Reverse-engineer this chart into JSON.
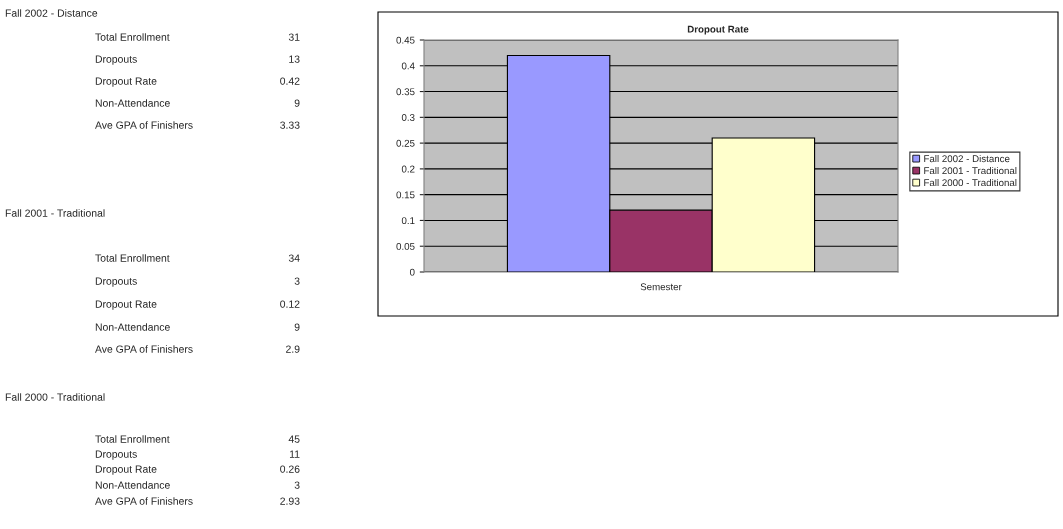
{
  "chart_data": [
    {
      "type": "other",
      "annotations": [
        "Fall 2002 - Distance",
        "Total Enrollment",
        "31",
        "Dropouts",
        "13",
        "Dropout Rate",
        "0.42",
        "Non-Attendance",
        "9",
        "Ave GPA of Finishers",
        "3.33",
        "Fall 2001 - Traditional",
        "Total Enrollment",
        "34",
        "Dropouts",
        "3",
        "Dropout Rate",
        "0.12",
        "Non-Attendance",
        "9",
        "Ave GPA of Finishers",
        "2.9",
        "Fall 2000 - Traditional",
        "Total Enrollment",
        "45",
        "Dropouts",
        "11",
        "Dropout Rate",
        "0.26",
        "Non-Attendance",
        "3",
        "Ave GPA of Finishers",
        "2.93"
      ]
    },
    {
      "type": "bar",
      "title": "Dropout Rate",
      "categories": [
        "Semester"
      ],
      "series": [
        {
          "name": "Fall 2002 - Distance",
          "color": "#9999ff",
          "values": [
            0.42
          ]
        },
        {
          "name": "Fall 2001 - Traditional",
          "color": "#993366",
          "values": [
            0.12
          ]
        },
        {
          "name": "Fall 2000 - Traditional",
          "color": "#ffffcc",
          "values": [
            0.26
          ]
        }
      ],
      "ylim": [
        0,
        0.45
      ],
      "yticks": [
        0,
        0.05,
        0.1,
        0.15,
        0.2,
        0.25,
        0.3,
        0.35,
        0.4,
        0.45
      ],
      "grid": "y",
      "legend": "right"
    }
  ]
}
